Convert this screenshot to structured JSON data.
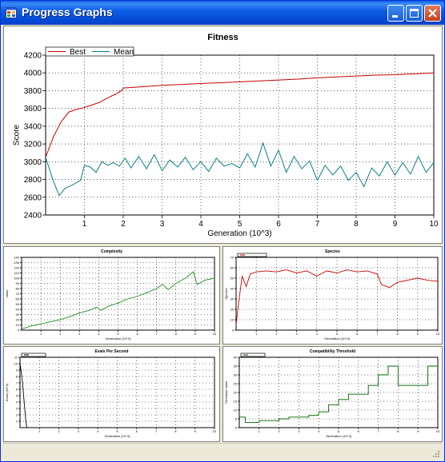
{
  "window": {
    "title": "Progress Graphs",
    "icon": "app-window-icon"
  },
  "colors": {
    "best": "#cc0000",
    "mean": "#0b7f8a",
    "complexity": "#228b22",
    "species": "#cc0000",
    "evals": "#000000",
    "threshold": "#006400"
  },
  "chart_data": [
    {
      "id": "fitness",
      "type": "line",
      "title": "Fitness",
      "xlabel": "Generation (10^3)",
      "ylabel": "Score",
      "xlim": [
        0,
        10
      ],
      "ylim": [
        2400,
        4200
      ],
      "xticks": [
        1,
        2,
        3,
        4,
        5,
        6,
        7,
        8,
        9,
        10
      ],
      "yticks": [
        2400,
        2600,
        2800,
        3000,
        3200,
        3400,
        3600,
        3800,
        4000,
        4200
      ],
      "grid": true,
      "legend": "top-left",
      "series": [
        {
          "name": "Best",
          "color": "#cc0000",
          "x": [
            0,
            0.2,
            0.4,
            0.6,
            0.8,
            1,
            1.2,
            1.4,
            1.6,
            1.8,
            1.95,
            2,
            2.5,
            3,
            3.5,
            4,
            4.5,
            5,
            5.5,
            6,
            6.5,
            7,
            7.5,
            8,
            8.5,
            9,
            9.5,
            10
          ],
          "y": [
            3050,
            3280,
            3450,
            3560,
            3590,
            3610,
            3640,
            3670,
            3720,
            3760,
            3800,
            3830,
            3845,
            3860,
            3870,
            3880,
            3890,
            3900,
            3910,
            3920,
            3930,
            3945,
            3955,
            3965,
            3975,
            3980,
            3990,
            4000
          ]
        },
        {
          "name": "Mean",
          "color": "#0b7f8a",
          "x": [
            0,
            0.2,
            0.35,
            0.5,
            0.7,
            0.9,
            1,
            1.15,
            1.3,
            1.45,
            1.6,
            1.75,
            1.9,
            2.05,
            2.2,
            2.4,
            2.6,
            2.8,
            3,
            3.2,
            3.4,
            3.6,
            3.8,
            4,
            4.2,
            4.4,
            4.6,
            4.8,
            5,
            5.2,
            5.4,
            5.6,
            5.8,
            6,
            6.2,
            6.4,
            6.6,
            6.8,
            7,
            7.2,
            7.4,
            7.6,
            7.8,
            8,
            8.2,
            8.4,
            8.6,
            8.8,
            9,
            9.2,
            9.4,
            9.6,
            9.8,
            10
          ],
          "y": [
            3050,
            2780,
            2620,
            2700,
            2740,
            2790,
            2960,
            2940,
            2880,
            3000,
            2960,
            2990,
            2950,
            3040,
            2930,
            3060,
            2920,
            3080,
            2900,
            3020,
            2940,
            3050,
            2910,
            3000,
            2890,
            3040,
            2950,
            2980,
            2930,
            3090,
            2940,
            3210,
            2950,
            3130,
            2880,
            3060,
            2920,
            3010,
            2790,
            2960,
            2850,
            2950,
            2790,
            2880,
            2720,
            2930,
            2840,
            3000,
            2850,
            2990,
            2860,
            3060,
            2880,
            2990
          ]
        }
      ]
    },
    {
      "id": "complexity",
      "type": "line",
      "title": "Complexity",
      "xlabel": "Generation (10^3)",
      "ylabel": "Value",
      "xlim": [
        0,
        10
      ],
      "ylim": [
        0,
        140
      ],
      "xticks": [
        1,
        2,
        3,
        4,
        5,
        6,
        7,
        8,
        9,
        10
      ],
      "yticks": [
        0,
        10,
        20,
        30,
        40,
        50,
        60,
        70,
        80,
        90,
        100,
        110,
        120,
        130,
        140
      ],
      "grid": true,
      "series": [
        {
          "name": "",
          "color": "#228b22",
          "x": [
            0,
            0.5,
            1,
            1.5,
            2,
            2.5,
            3,
            3.5,
            3.9,
            4.1,
            4.5,
            5,
            5.5,
            6,
            6.5,
            7,
            7.3,
            7.6,
            8,
            8.5,
            8.9,
            9.1,
            9.5,
            10
          ],
          "y": [
            2,
            8,
            12,
            16,
            20,
            26,
            33,
            38,
            44,
            38,
            46,
            52,
            60,
            65,
            72,
            80,
            88,
            78,
            90,
            100,
            112,
            88,
            96,
            100
          ]
        }
      ]
    },
    {
      "id": "species",
      "type": "line",
      "title": "Species",
      "xlabel": "Generation (10^3)",
      "ylabel": "Species",
      "xlim": [
        0,
        10
      ],
      "ylim": [
        0,
        70
      ],
      "xticks": [
        1,
        2,
        3,
        4,
        5,
        6,
        7,
        8,
        9,
        10
      ],
      "yticks": [
        0,
        10,
        20,
        30,
        40,
        50,
        60,
        70
      ],
      "grid": true,
      "legend": "top-left",
      "series": [
        {
          "name": "",
          "color": "#cc0000",
          "x": [
            0,
            0.15,
            0.3,
            0.5,
            0.7,
            1,
            1.5,
            2,
            2.5,
            3,
            3.5,
            4,
            4.5,
            5,
            5.5,
            6,
            6.5,
            7,
            7.2,
            7.6,
            8,
            8.5,
            9,
            9.5,
            10
          ],
          "y": [
            5,
            30,
            52,
            42,
            54,
            56,
            57,
            56,
            58,
            55,
            57,
            52,
            57,
            55,
            58,
            56,
            57,
            54,
            44,
            41,
            46,
            48,
            50,
            48,
            47
          ]
        }
      ]
    },
    {
      "id": "evals",
      "type": "line",
      "title": "Evals Per Second",
      "xlabel": "Generation (10^3)",
      "ylabel": "Evals (10^3)",
      "xlim": [
        0,
        10
      ],
      "ylim": [
        0,
        11
      ],
      "xticks": [
        1,
        2,
        3,
        4,
        5,
        6,
        7,
        8,
        9,
        10
      ],
      "yticks": [
        1,
        2,
        3,
        4,
        5,
        6,
        7,
        8,
        9,
        10,
        11
      ],
      "grid": true,
      "legend": "top-left",
      "series": [
        {
          "name": "",
          "color": "#000000",
          "x": [
            0,
            0.1,
            0.3,
            0.35
          ],
          "y": [
            10,
            8,
            1,
            0
          ]
        }
      ]
    },
    {
      "id": "threshold",
      "type": "line",
      "title": "Compatibility Threshold",
      "xlabel": "Generation (10^3)",
      "ylabel": "Threshold Value",
      "xlim": [
        0,
        10
      ],
      "ylim": [
        0,
        40
      ],
      "xticks": [
        1,
        2,
        3,
        4,
        5,
        6,
        7,
        8,
        9,
        10
      ],
      "yticks": [
        0,
        5,
        10,
        15,
        20,
        25,
        30,
        35,
        40
      ],
      "grid": true,
      "legend": "top-left",
      "series": [
        {
          "name": "",
          "color": "#006400",
          "step": true,
          "x": [
            0,
            0.3,
            0.6,
            1,
            1.5,
            2,
            2.5,
            3,
            3.5,
            4,
            4.5,
            5,
            5.5,
            6,
            6.5,
            7,
            7.5,
            8,
            8.5,
            9,
            9.5,
            10
          ],
          "y": [
            6,
            3,
            3,
            4,
            4,
            5,
            6,
            6,
            7,
            9,
            13,
            16,
            19,
            19,
            24,
            30,
            35,
            24,
            24,
            24,
            35,
            36
          ]
        }
      ]
    }
  ]
}
